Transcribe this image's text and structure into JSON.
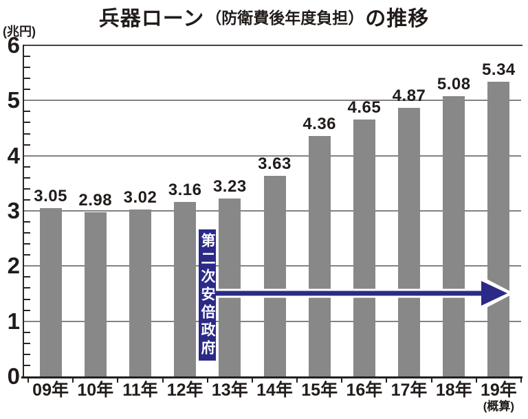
{
  "title": {
    "main": "兵器ローン",
    "paren": "（防衛費後年度負担）",
    "suffix": "の推移"
  },
  "unit_label": "(兆円)",
  "chart_data": {
    "type": "bar",
    "title": "兵器ローン（防衛費後年度負担）の推移",
    "ylabel": "(兆円)",
    "xlabel": "",
    "categories": [
      "09年",
      "10年",
      "11年",
      "12年",
      "13年",
      "14年",
      "15年",
      "16年",
      "17年",
      "18年",
      "19年"
    ],
    "values": [
      3.05,
      2.98,
      3.02,
      3.16,
      3.23,
      3.63,
      4.36,
      4.65,
      4.87,
      5.08,
      5.34
    ],
    "value_labels": [
      "3.05",
      "2.98",
      "3.02",
      "3.16",
      "3.23",
      "3.63",
      "4.36",
      "4.65",
      "4.87",
      "5.08",
      "5.34"
    ],
    "last_category_note": "(概算)",
    "ylim": [
      0,
      6
    ],
    "ytick_major": 1,
    "ytick_minor": 0.2,
    "ytick_labels": [
      "0",
      "1",
      "2",
      "3",
      "4",
      "5",
      "6"
    ],
    "grid": "horizontal-major",
    "legend": "none",
    "bar_color": "#888888",
    "text_color": "#211c1a",
    "grid_color": "#828282",
    "annotation": {
      "label": "第二次安倍政府",
      "box_color": "#2b2a86",
      "text_color": "#ffffff",
      "arrow_color": "#2b2a86",
      "arrow_outline": "#ffffff",
      "arrow_y_value": 1.5
    }
  }
}
